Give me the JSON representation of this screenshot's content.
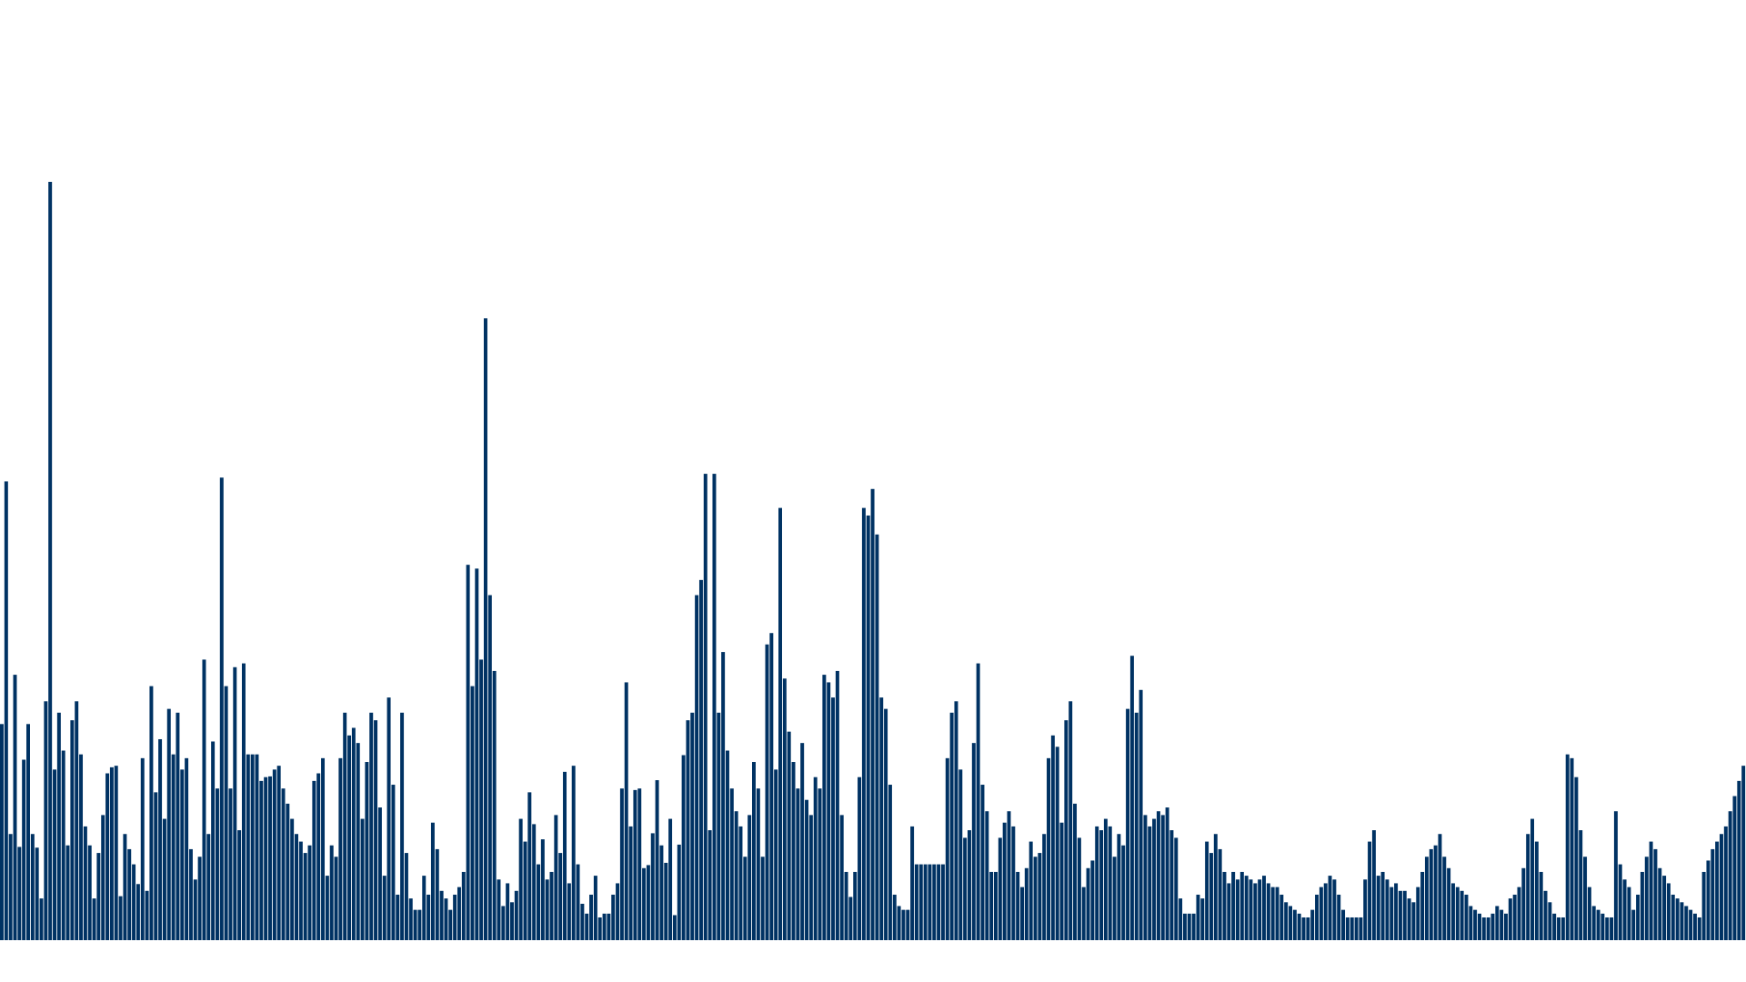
{
  "chart_data": {
    "type": "bar",
    "title": "",
    "xlabel": "",
    "ylabel": "",
    "ylim": [
      0,
      1000
    ],
    "grid": false,
    "legend": "none",
    "colors": {
      "bar": "#003263",
      "background": "#ffffff"
    },
    "values": [
      285,
      605,
      140,
      350,
      123,
      238,
      285,
      140,
      122,
      55,
      315,
      1000,
      225,
      300,
      250,
      125,
      290,
      315,
      245,
      150,
      125,
      55,
      115,
      165,
      220,
      228,
      230,
      58,
      140,
      120,
      100,
      74,
      240,
      65,
      335,
      195,
      265,
      160,
      305,
      245,
      300,
      225,
      240,
      120,
      80,
      110,
      370,
      140,
      262,
      200,
      610,
      335,
      200,
      360,
      145,
      365,
      245,
      245,
      245,
      210,
      215,
      216,
      225,
      230,
      200,
      180,
      160,
      140,
      130,
      115,
      125,
      210,
      220,
      240,
      85,
      125,
      110,
      240,
      300,
      270,
      280,
      260,
      160,
      235,
      300,
      290,
      175,
      85,
      320,
      205,
      60,
      300,
      115,
      55,
      40,
      40,
      85,
      60,
      155,
      120,
      65,
      55,
      40,
      60,
      70,
      90,
      495,
      335,
      490,
      370,
      820,
      455,
      355,
      80,
      45,
      75,
      50,
      65,
      160,
      130,
      195,
      153,
      100,
      133,
      80,
      90,
      165,
      115,
      222,
      75,
      230,
      100,
      48,
      35,
      60,
      85,
      30,
      35,
      35,
      60,
      75,
      200,
      340,
      150,
      198,
      200,
      95,
      99,
      141,
      211,
      125,
      102,
      160,
      33,
      126,
      244,
      290,
      300,
      455,
      475,
      615,
      145,
      615,
      300,
      380,
      250,
      200,
      170,
      150,
      110,
      165,
      235,
      200,
      110,
      390,
      405,
      225,
      570,
      345,
      275,
      235,
      200,
      260,
      185,
      165,
      215,
      200,
      350,
      340,
      320,
      355,
      165,
      90,
      57,
      90,
      215,
      570,
      560,
      595,
      535,
      320,
      305,
      205,
      60,
      45,
      40,
      40,
      150,
      100,
      100,
      100,
      100,
      100,
      100,
      100,
      240,
      300,
      315,
      225,
      135,
      145,
      260,
      365,
      205,
      170,
      90,
      90,
      135,
      155,
      170,
      150,
      90,
      70,
      95,
      130,
      110,
      115,
      140,
      240,
      270,
      255,
      155,
      290,
      315,
      180,
      135,
      70,
      95,
      105,
      150,
      145,
      160,
      150,
      110,
      140,
      125,
      305,
      375,
      300,
      330,
      165,
      150,
      160,
      170,
      165,
      175,
      145,
      135,
      55,
      35,
      35,
      35,
      60,
      55,
      130,
      115,
      140,
      120,
      90,
      75,
      90,
      80,
      90,
      85,
      80,
      75,
      80,
      85,
      75,
      70,
      70,
      60,
      50,
      45,
      40,
      35,
      30,
      30,
      40,
      60,
      70,
      75,
      85,
      80,
      60,
      40,
      30,
      30,
      30,
      30,
      80,
      130,
      145,
      85,
      90,
      80,
      70,
      75,
      65,
      65,
      55,
      50,
      70,
      90,
      110,
      120,
      125,
      140,
      110,
      95,
      75,
      70,
      65,
      60,
      45,
      40,
      35,
      30,
      30,
      35,
      45,
      40,
      35,
      55,
      60,
      70,
      95,
      140,
      160,
      130,
      90,
      65,
      50,
      35,
      30,
      30,
      245,
      240,
      215,
      145,
      110,
      70,
      45,
      40,
      35,
      30,
      30,
      170,
      100,
      80,
      70,
      40,
      60,
      90,
      110,
      130,
      120,
      95,
      85,
      75,
      60,
      55,
      50,
      45,
      40,
      35,
      30,
      90,
      105,
      120,
      130,
      140,
      150,
      170,
      190,
      210,
      230
    ]
  }
}
